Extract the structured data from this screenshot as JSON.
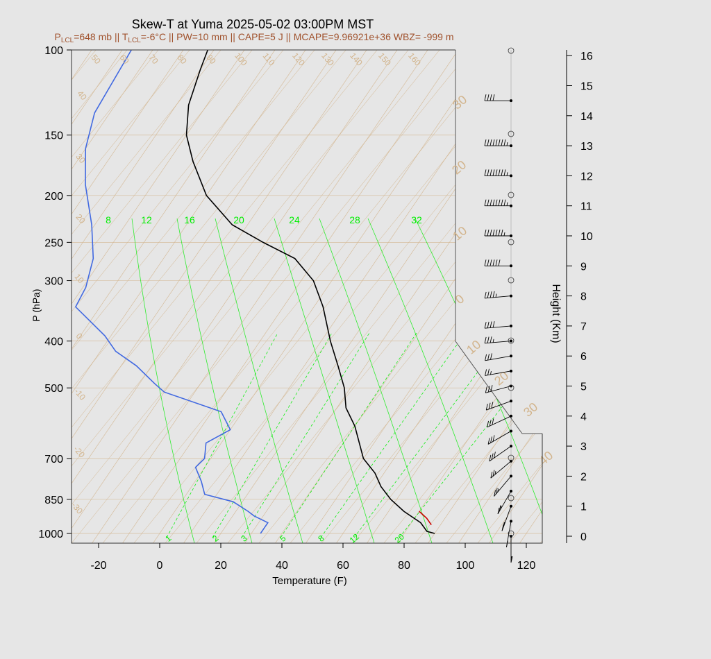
{
  "chart_data": {
    "type": "line",
    "title": "Skew-T at Yuma 2025-05-02 03:00PM MST",
    "subtitle": {
      "lcl_p_label": "P",
      "lcl_p_sub": "LCL",
      "lcl_p_value": "=648 mb || T",
      "lcl_t_sub": "LCL",
      "rest": "=-6°C || PW=10 mm || CAPE=5 J || MCAPE=9.96921e+36 WBZ= -999 m"
    },
    "xlabel": "Temperature (F)",
    "ylabel": "P (hPa)",
    "y2label": "Height (Km)",
    "x_ticks": [
      "-20",
      "0",
      "20",
      "40",
      "60",
      "80",
      "100",
      "120"
    ],
    "x_tick_values": [
      -20,
      0,
      20,
      40,
      60,
      80,
      100,
      120
    ],
    "y_ticks": [
      "100",
      "150",
      "200",
      "250",
      "300",
      "400",
      "500",
      "700",
      "850",
      "1000"
    ],
    "y_tick_values": [
      100,
      150,
      200,
      250,
      300,
      400,
      500,
      700,
      850,
      1000
    ],
    "height_ticks": [
      "0",
      "1",
      "2",
      "3",
      "4",
      "5",
      "6",
      "7",
      "8",
      "9",
      "10",
      "11",
      "12",
      "13",
      "14",
      "15",
      "16"
    ],
    "xlim": [
      -28,
      125
    ],
    "ylim": [
      1050,
      100
    ],
    "colors": {
      "temperature": "#000000",
      "dewpoint": "#4169e1",
      "isotherm": "#d2b48c",
      "mixing_ratio": "#00ee00",
      "parcel": "#cc0000",
      "subtitle": "#a0522d"
    },
    "isotherm_labels": [
      "50",
      "60",
      "70",
      "80",
      "90",
      "100",
      "110",
      "120",
      "130",
      "140",
      "150",
      "160",
      "40",
      "30",
      "20",
      "10",
      "0",
      "-10",
      "-20",
      "-30"
    ],
    "right_isotherm_labels": [
      "30",
      "20",
      "10",
      "0",
      "10",
      "20",
      "30",
      "40"
    ],
    "theta_e_labels": [
      "8",
      "12",
      "16",
      "20",
      "24",
      "28",
      "32"
    ],
    "mixing_ratio_labels": [
      "1",
      "2",
      "3",
      "5",
      "8",
      "12",
      "20"
    ],
    "series": [
      {
        "key": "temperature",
        "points": [
          [
            90,
            1000
          ],
          [
            87,
            990
          ],
          [
            83,
            950
          ],
          [
            75,
            900
          ],
          [
            68,
            850
          ],
          [
            62,
            800
          ],
          [
            57,
            750
          ],
          [
            50,
            700
          ],
          [
            40,
            600
          ],
          [
            33,
            550
          ],
          [
            28,
            500
          ],
          [
            21,
            450
          ],
          [
            13,
            400
          ],
          [
            3,
            340
          ],
          [
            -6,
            300
          ],
          [
            -17,
            270
          ],
          [
            -31,
            250
          ],
          [
            -45,
            230
          ],
          [
            -60,
            200
          ],
          [
            -72,
            170
          ],
          [
            -80,
            150
          ],
          [
            -86,
            130
          ],
          [
            -90,
            110
          ],
          [
            -92,
            100
          ]
        ]
      },
      {
        "key": "dewpoint",
        "points": [
          [
            33,
            1000
          ],
          [
            33,
            950
          ],
          [
            27,
            920
          ],
          [
            24,
            900
          ],
          [
            17,
            860
          ],
          [
            6,
            830
          ],
          [
            2,
            780
          ],
          [
            -3,
            730
          ],
          [
            -2,
            700
          ],
          [
            -5,
            650
          ],
          [
            0,
            610
          ],
          [
            -7,
            560
          ],
          [
            -30,
            510
          ],
          [
            -35,
            490
          ],
          [
            -45,
            450
          ],
          [
            -55,
            420
          ],
          [
            -62,
            390
          ],
          [
            -78,
            340
          ],
          [
            -79,
            310
          ],
          [
            -83,
            270
          ],
          [
            -91,
            230
          ],
          [
            -102,
            190
          ],
          [
            -110,
            160
          ],
          [
            -115,
            135
          ],
          [
            -117,
            100
          ]
        ]
      },
      {
        "key": "parcel",
        "points": [
          [
            80,
            900
          ],
          [
            84,
            930
          ],
          [
            87,
            960
          ]
        ]
      }
    ],
    "wind_profile": {
      "columns": [
        "height_km",
        "direction_deg",
        "speed_kt"
      ],
      "rows": [
        [
          0,
          180,
          15
        ],
        [
          0.5,
          190,
          15
        ],
        [
          1,
          200,
          25
        ],
        [
          1.5,
          210,
          25
        ],
        [
          2,
          220,
          25
        ],
        [
          2.5,
          230,
          25
        ],
        [
          3,
          235,
          30
        ],
        [
          3.5,
          240,
          30
        ],
        [
          4,
          245,
          30
        ],
        [
          4.5,
          250,
          30
        ],
        [
          5,
          255,
          30
        ],
        [
          5.5,
          260,
          25
        ],
        [
          6,
          260,
          30
        ],
        [
          6.5,
          265,
          35
        ],
        [
          7,
          265,
          40
        ],
        [
          8,
          265,
          45
        ],
        [
          9,
          270,
          60
        ],
        [
          10,
          270,
          75
        ],
        [
          11,
          270,
          90
        ],
        [
          12,
          270,
          95
        ],
        [
          13,
          270,
          95
        ],
        [
          14.5,
          270,
          40
        ]
      ]
    }
  }
}
